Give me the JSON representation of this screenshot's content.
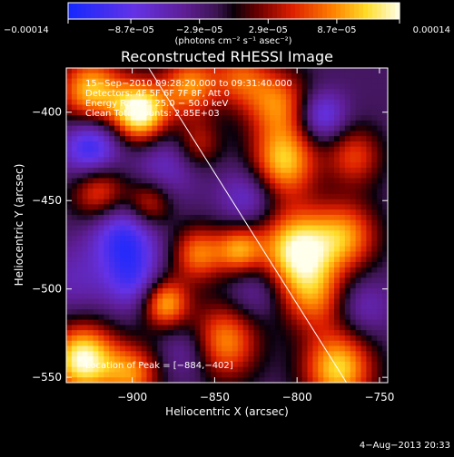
{
  "chart_data": {
    "type": "heatmap",
    "title": "Reconstructed RHESSI Image",
    "xlabel": "Heliocentric X (arcsec)",
    "ylabel": "Heliocentric Y (arcsec)",
    "xlim": [
      -940,
      -745
    ],
    "ylim": [
      -553,
      -375
    ],
    "xticks": [
      -900,
      -850,
      -800,
      -750
    ],
    "xtick_labels": [
      "−900",
      "−850",
      "−800",
      "−750"
    ],
    "yticks": [
      -400,
      -450,
      -500,
      -550
    ],
    "ytick_labels": [
      "−400",
      "−450",
      "−500",
      "−550"
    ],
    "colorbar": {
      "range": [
        -0.00014,
        0.00014
      ],
      "ticks": [
        -0.00014,
        -8.7e-05,
        -2.9e-05,
        2.9e-05,
        8.7e-05,
        0.00014
      ],
      "tick_labels": [
        "−0.00014",
        "−8.7e−05",
        "−2.9e−05",
        "2.9e−05",
        "8.7e−05",
        "0.00014"
      ],
      "units": "(photons cm⁻² s⁻¹ asec⁻²)"
    },
    "annotations": [
      "15−Sep−2010 09:28:20.000 to 09:31:40.000",
      "Detectors: 4F 5F 6F 7F 8F, Att 0",
      "Energy Range: 25.0 − 50.0 keV",
      "Clean     Total counts: 2.85E+03"
    ],
    "peak_label": "Location of Peak = [−884,−402]",
    "peak": [
      -884,
      -402
    ],
    "limb_line": [
      [
        -890,
        -375
      ],
      [
        -770,
        -553
      ]
    ],
    "blobs": [
      {
        "x": -895,
        "y": -400,
        "a": 1.2,
        "s": 12
      },
      {
        "x": -925,
        "y": -388,
        "a": 0.9,
        "s": 14
      },
      {
        "x": -865,
        "y": -385,
        "a": 0.75,
        "s": 12
      },
      {
        "x": -835,
        "y": -380,
        "a": 0.55,
        "s": 12
      },
      {
        "x": -812,
        "y": -395,
        "a": 0.7,
        "s": 14
      },
      {
        "x": -808,
        "y": -428,
        "a": 0.9,
        "s": 14
      },
      {
        "x": -800,
        "y": -478,
        "a": 1.1,
        "s": 16
      },
      {
        "x": -770,
        "y": -470,
        "a": 0.7,
        "s": 14
      },
      {
        "x": -765,
        "y": -425,
        "a": 0.55,
        "s": 12
      },
      {
        "x": -790,
        "y": -505,
        "a": 0.6,
        "s": 14
      },
      {
        "x": -775,
        "y": -545,
        "a": 0.95,
        "s": 15
      },
      {
        "x": -845,
        "y": -530,
        "a": 0.8,
        "s": 15
      },
      {
        "x": -880,
        "y": -508,
        "a": 0.85,
        "s": 10
      },
      {
        "x": -860,
        "y": -480,
        "a": 0.7,
        "s": 11
      },
      {
        "x": -835,
        "y": -478,
        "a": 0.75,
        "s": 10
      },
      {
        "x": -890,
        "y": -452,
        "a": 0.6,
        "s": 10
      },
      {
        "x": -920,
        "y": -445,
        "a": 0.65,
        "s": 12
      },
      {
        "x": -930,
        "y": -540,
        "a": 1.15,
        "s": 14
      },
      {
        "x": -900,
        "y": -548,
        "a": 0.7,
        "s": 12
      },
      {
        "x": -860,
        "y": -418,
        "a": 0.45,
        "s": 10
      },
      {
        "x": -905,
        "y": -470,
        "a": -0.7,
        "s": 14
      },
      {
        "x": -925,
        "y": -420,
        "a": -0.75,
        "s": 12
      },
      {
        "x": -880,
        "y": -430,
        "a": -0.35,
        "s": 14
      },
      {
        "x": -900,
        "y": -495,
        "a": -0.5,
        "s": 12
      },
      {
        "x": -865,
        "y": -535,
        "a": -0.35,
        "s": 12
      },
      {
        "x": -825,
        "y": -500,
        "a": -0.3,
        "s": 12
      },
      {
        "x": -785,
        "y": -402,
        "a": -0.55,
        "s": 10
      },
      {
        "x": -830,
        "y": -448,
        "a": -0.4,
        "s": 12
      },
      {
        "x": -760,
        "y": -510,
        "a": -0.3,
        "s": 12
      },
      {
        "x": -935,
        "y": -495,
        "a": -0.25,
        "s": 14
      }
    ]
  },
  "footer": {
    "date": "4−Aug−2013 20:33"
  }
}
